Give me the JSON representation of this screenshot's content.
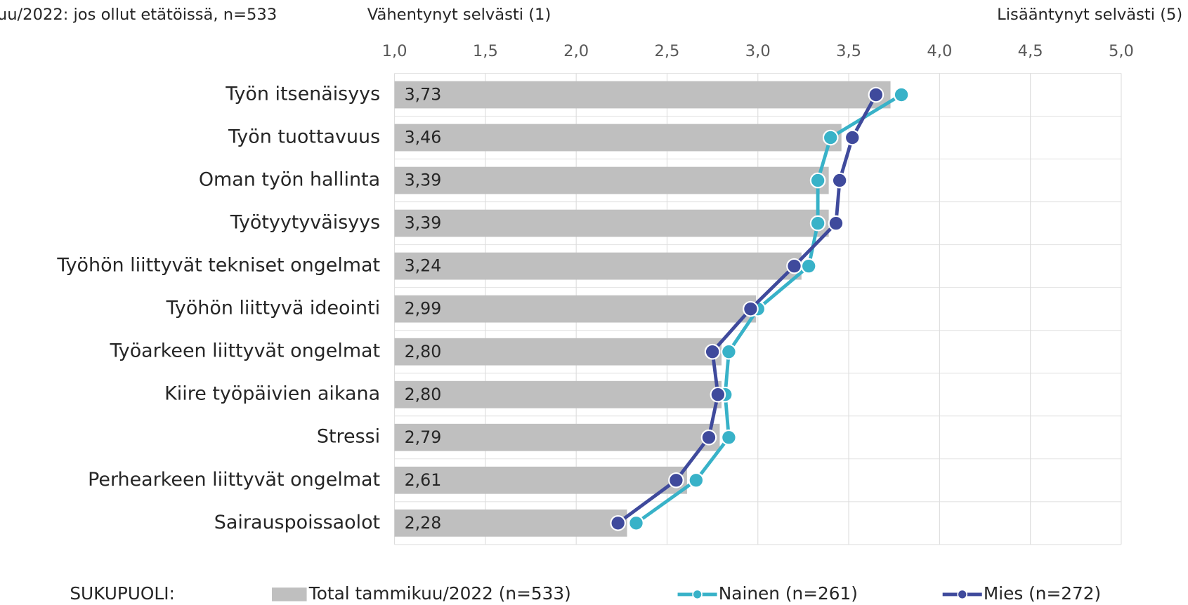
{
  "chart_data": {
    "type": "bar",
    "title": "uu/2022: jos ollut etätöissä, n=533",
    "annotations": [
      "Vähentynyt selvästi (1)",
      "Lisääntynyt selvästi (5)"
    ],
    "legend_title": "SUKUPUOLI:",
    "orientation": "horizontal",
    "categories": [
      "Työn itsenäisyys",
      "Työn tuottavuus",
      "Oman työn hallinta",
      "Työtyytyväisyys",
      "Työhön liittyvät tekniset ongelmat",
      "Työhön liittyvä ideointi",
      "Työarkeen liittyvät ongelmat",
      "Kiire työpäivien aikana",
      "Stressi",
      "Perhearkeen liittyvät ongelmat",
      "Sairauspoissaolot"
    ],
    "series": [
      {
        "name": "Total tammikuu/2022 (n=533)",
        "type": "bar",
        "color": "#bfbfbf",
        "values": [
          3.73,
          3.46,
          3.39,
          3.39,
          3.24,
          2.99,
          2.8,
          2.8,
          2.79,
          2.61,
          2.28
        ],
        "value_labels": [
          "3,73",
          "3,46",
          "3,39",
          "3,39",
          "3,24",
          "2,99",
          "2,80",
          "2,80",
          "2,79",
          "2,61",
          "2,28"
        ]
      },
      {
        "name": "Nainen (n=261)",
        "type": "line",
        "color": "#38b2c8",
        "values": [
          3.79,
          3.4,
          3.33,
          3.33,
          3.28,
          3.0,
          2.84,
          2.82,
          2.84,
          2.66,
          2.33
        ]
      },
      {
        "name": "Mies (n=272)",
        "type": "line",
        "color": "#3f4a9c",
        "values": [
          3.65,
          3.52,
          3.45,
          3.43,
          3.2,
          2.96,
          2.75,
          2.78,
          2.73,
          2.55,
          2.23
        ]
      }
    ],
    "xlim": [
      1,
      5
    ],
    "xticks": [
      {
        "value": 1,
        "label": "1,0"
      },
      {
        "value": 1.5,
        "label": "1,5"
      },
      {
        "value": 2,
        "label": "2,0"
      },
      {
        "value": 2.5,
        "label": "2,5"
      },
      {
        "value": 3,
        "label": "3,0"
      },
      {
        "value": 3.5,
        "label": "3,5"
      },
      {
        "value": 4,
        "label": "4,0"
      },
      {
        "value": 4.5,
        "label": "4,5"
      },
      {
        "value": 5,
        "label": "5,0"
      }
    ],
    "grid": true
  }
}
